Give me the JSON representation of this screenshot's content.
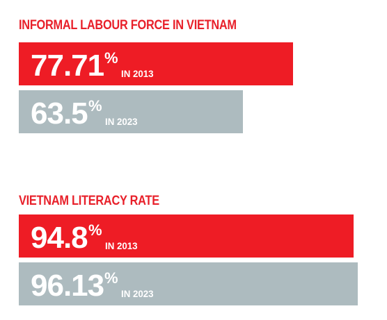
{
  "colors": {
    "accent_red": "#e8202a",
    "bar_2013": "#ee1c25",
    "bar_2023": "#adbbbf"
  },
  "chart_data": [
    {
      "type": "bar",
      "orientation": "horizontal",
      "title": "INFORMAL LABOUR FORCE IN VIETNAM",
      "unit": "%",
      "xlim": [
        0,
        100
      ],
      "bars": [
        {
          "display": "77.71",
          "value": 77.71,
          "suffix": "%",
          "label": "IN 2013"
        },
        {
          "display": "63.5",
          "value": 63.5,
          "suffix": "%",
          "label": "IN 2023"
        }
      ]
    },
    {
      "type": "bar",
      "orientation": "horizontal",
      "title": "VIETNAM LITERACY RATE",
      "unit": "%",
      "xlim": [
        0,
        100
      ],
      "bars": [
        {
          "display": "94.8",
          "value": 94.8,
          "suffix": "%",
          "label": "IN 2013"
        },
        {
          "display": "96.13",
          "value": 96.13,
          "suffix": "%",
          "label": "IN 2023"
        }
      ]
    }
  ]
}
